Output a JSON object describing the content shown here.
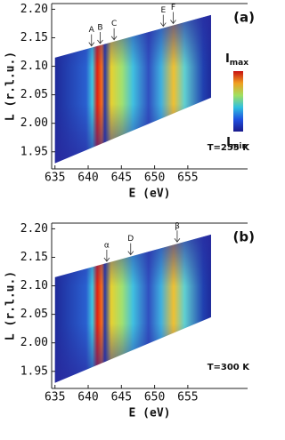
{
  "chart_data": [
    {
      "type": "heatmap",
      "panel": "(a)",
      "temperature": "T=255 K",
      "x_label": "E (eV)",
      "y_label": "L (r.l.u.)",
      "xlim": [
        634.5,
        664
      ],
      "ylim": [
        1.92,
        2.21
      ],
      "xticks": [
        635,
        640,
        645,
        650,
        655
      ],
      "yticks": [
        {
          "value": 1.95,
          "label": "1.95"
        },
        {
          "value": 2.0,
          "label": "2.00"
        },
        {
          "value": 2.05,
          "label": "2.05"
        },
        {
          "value": 2.1,
          "label": "2.10"
        },
        {
          "value": 2.15,
          "label": "2.15"
        },
        {
          "value": 2.2,
          "label": "2.20"
        }
      ],
      "annotations": [
        {
          "text": "A",
          "x": 640.5
        },
        {
          "text": "B",
          "x": 641.8
        },
        {
          "text": "C",
          "x": 643.9
        },
        {
          "text": "E",
          "x": 651.3
        },
        {
          "text": "F",
          "x": 652.8
        }
      ],
      "colorbar": {
        "max": [
          "I",
          "max"
        ],
        "min": [
          "I",
          "min"
        ]
      }
    },
    {
      "type": "heatmap",
      "panel": "(b)",
      "temperature": "T=300 K",
      "x_label": "E (eV)",
      "y_label": "L (r.l.u.)",
      "xlim": [
        634.5,
        664
      ],
      "ylim": [
        1.92,
        2.21
      ],
      "xticks": [
        635,
        640,
        645,
        650,
        655
      ],
      "yticks": [
        {
          "value": 1.95,
          "label": "1.95"
        },
        {
          "value": 2.0,
          "label": "2.00"
        },
        {
          "value": 2.05,
          "label": "2.05"
        },
        {
          "value": 2.1,
          "label": "2.10"
        },
        {
          "value": 2.15,
          "label": "2.15"
        },
        {
          "value": 2.2,
          "label": "2.20"
        }
      ],
      "annotations": [
        {
          "text": "α",
          "x": 642.8
        },
        {
          "text": "D",
          "x": 646.4
        },
        {
          "text": "β",
          "x": 653.4
        }
      ]
    }
  ]
}
